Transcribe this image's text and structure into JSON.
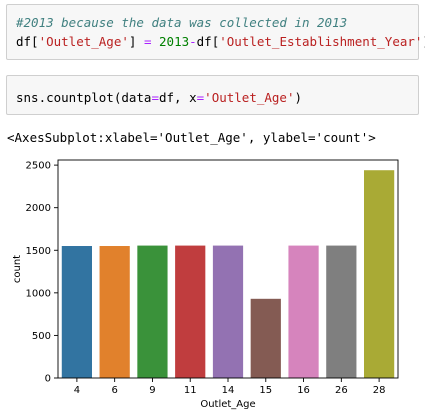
{
  "cells": [
    {
      "comment": "#2013 because the data was collected in 2013",
      "code": {
        "p1": "df[",
        "s1": "'Outlet_Age'",
        "p2": "] ",
        "eq": "=",
        "p3": " ",
        "num": "2013",
        "minus": "-",
        "p4": "df[",
        "s2": "'Outlet_Establishment_Year'",
        "p5": "]"
      }
    },
    {
      "code": {
        "p1": "sns.countplot(data",
        "eq1": "=",
        "p2": "df, x",
        "eq2": "=",
        "s1": "'Outlet_Age'",
        "p3": ")"
      }
    }
  ],
  "output_text": "<AxesSubplot:xlabel='Outlet_Age', ylabel='count'>",
  "chart_data": {
    "type": "bar",
    "categories": [
      "4",
      "6",
      "9",
      "11",
      "14",
      "15",
      "16",
      "26",
      "28"
    ],
    "values": [
      1550,
      1550,
      1555,
      1555,
      1555,
      930,
      1555,
      1555,
      2440
    ],
    "colors": [
      "#3274a1",
      "#e1812c",
      "#3a923a",
      "#c03d3e",
      "#9372b2",
      "#845b53",
      "#d684bd",
      "#7f7f7f",
      "#a9aa35"
    ],
    "xlabel": "Outlet_Age",
    "ylabel": "count",
    "ylim": [
      0,
      2560
    ],
    "yticks": [
      0,
      500,
      1000,
      1500,
      2000,
      2500
    ],
    "grid": false
  }
}
